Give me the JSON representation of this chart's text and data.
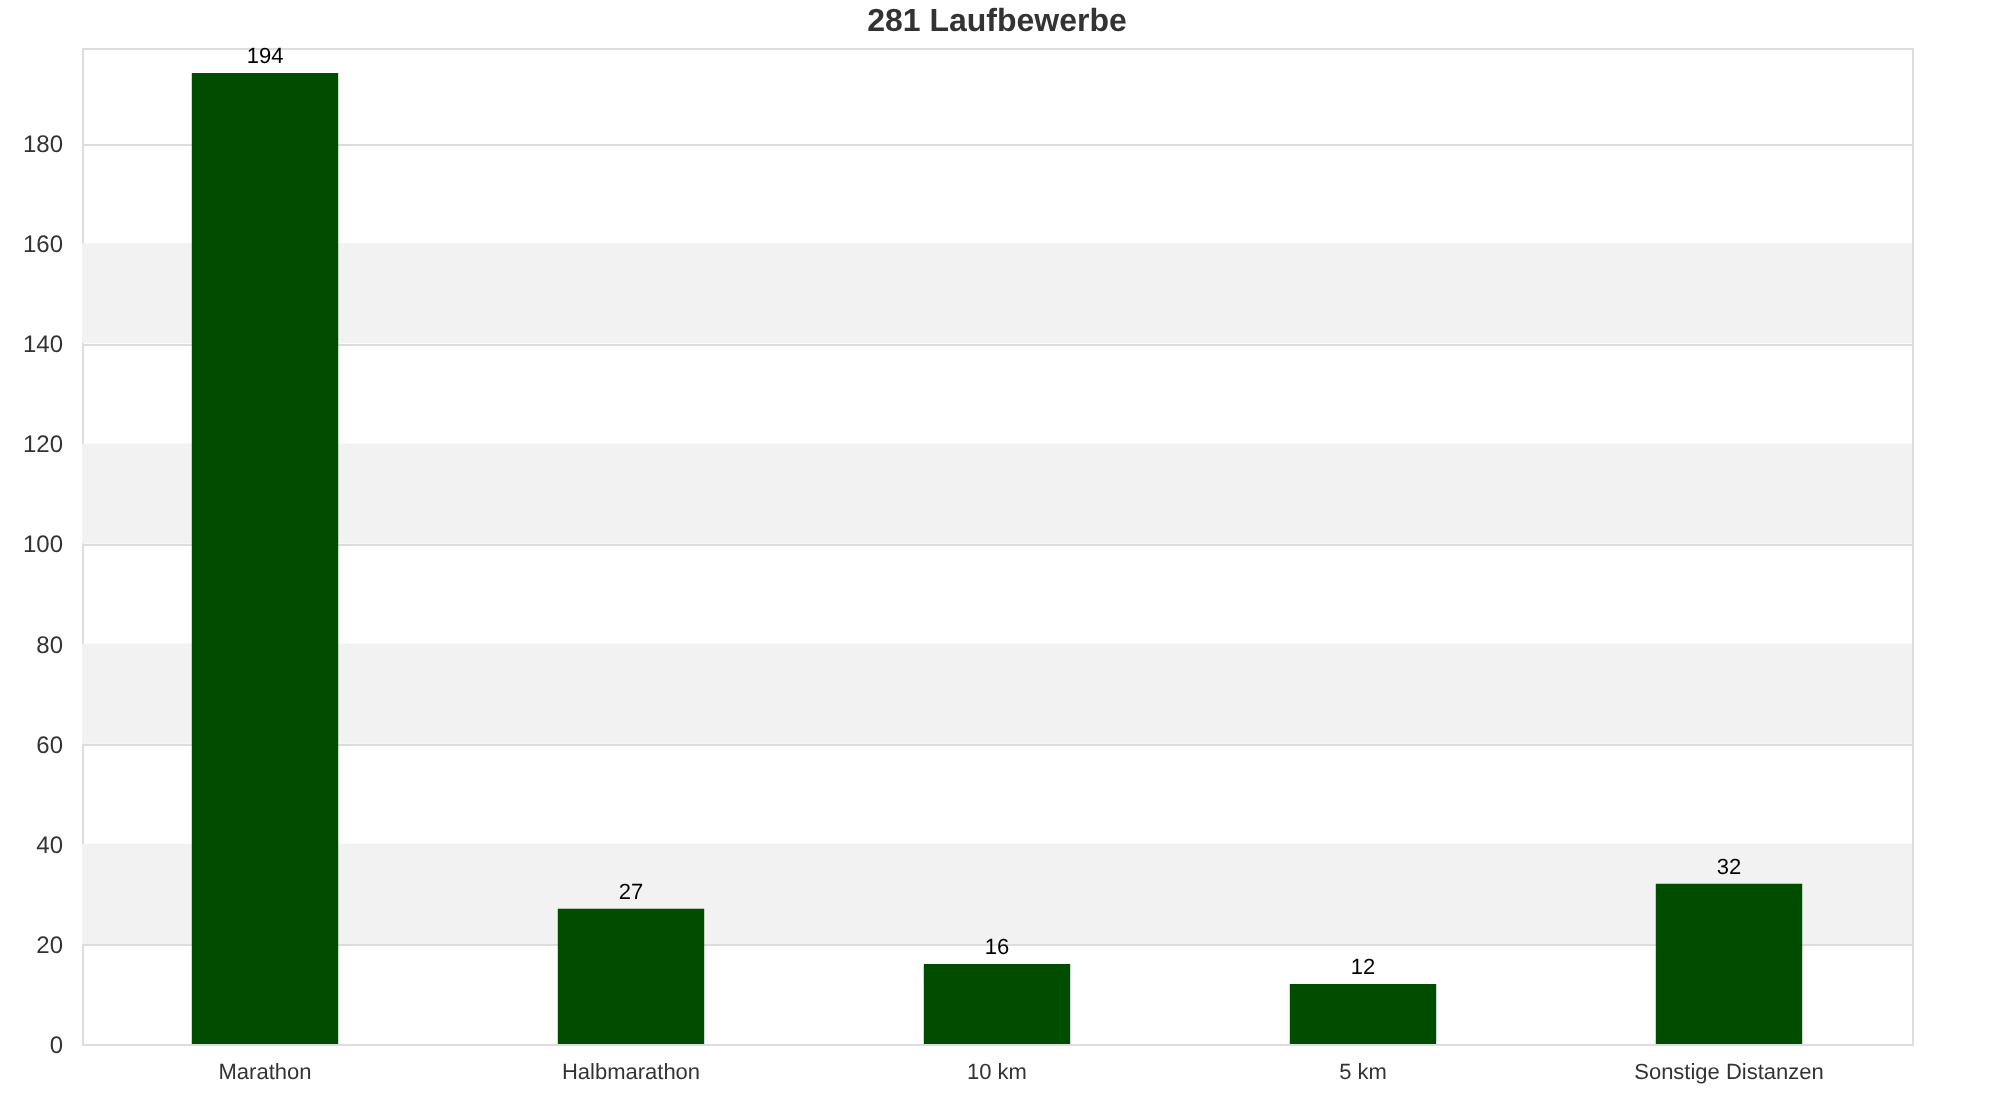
{
  "chart_data": {
    "type": "bar",
    "title": "281 Laufbewerbe",
    "categories": [
      "Marathon",
      "Halbmarathon",
      "10 km",
      "5 km",
      "Sonstige Distanzen"
    ],
    "values": [
      194,
      27,
      16,
      12,
      32
    ],
    "color": "#004d00",
    "ylim": [
      0,
      199
    ],
    "yticks": [
      0,
      20,
      40,
      60,
      80,
      100,
      120,
      140,
      160,
      180
    ],
    "grid": "y",
    "data_labels": true,
    "bands": [
      {
        "axis": "y",
        "from": 20,
        "to": 40,
        "color": "#f2f2f2"
      },
      {
        "axis": "y",
        "from": 60,
        "to": 80,
        "color": "#f2f2f2"
      },
      {
        "axis": "y",
        "from": 100,
        "to": 120,
        "color": "#f2f2f2"
      },
      {
        "axis": "y",
        "from": 140,
        "to": 160,
        "color": "#f2f2f2"
      }
    ]
  }
}
